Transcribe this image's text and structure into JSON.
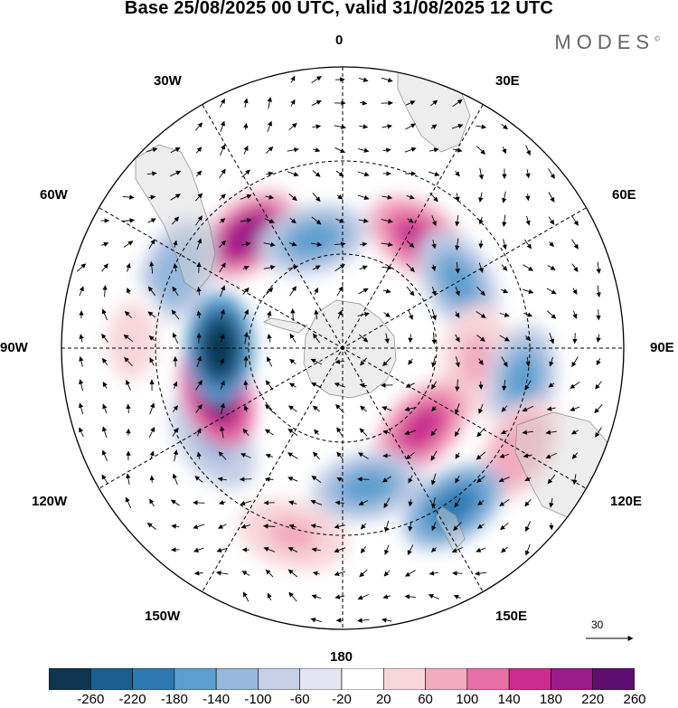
{
  "title": "Base 25/08/2025 00 UTC, valid 31/08/2025 12 UTC",
  "brand": "MODES",
  "brand_mark": "©",
  "longitude_labels": {
    "top": "0",
    "top_right": "30E",
    "right_upper": "60E",
    "right": "90E",
    "right_lower": "120E",
    "bottom_right": "150E",
    "bottom": "180",
    "bottom_left": "150W",
    "left_lower": "120W",
    "left": "90W",
    "left_upper": "60W",
    "top_left": "30W"
  },
  "reference_vector": {
    "label": "30"
  },
  "colorbar": {
    "ticks": [
      "-260",
      "-220",
      "-180",
      "-140",
      "-100",
      "-60",
      "-20",
      "20",
      "60",
      "100",
      "140",
      "180",
      "220",
      "260"
    ],
    "colors": [
      "#0f3550",
      "#1b5f8e",
      "#2f79b3",
      "#5c9fcf",
      "#95b8dc",
      "#c5cfe6",
      "#e5e4f1",
      "#ffffff",
      "#f8d6dc",
      "#f2aabf",
      "#e870a6",
      "#c92d8f",
      "#9c1a89",
      "#5c0f6e"
    ]
  },
  "map_data": {
    "projection": "south-polar-stereographic",
    "anomalies": [
      {
        "lon": -40,
        "lat": -48,
        "value": 230
      },
      {
        "lon": -15,
        "lat": -58,
        "value": -140
      },
      {
        "lon": 35,
        "lat": -52,
        "value": 190
      },
      {
        "lon": 60,
        "lat": -52,
        "value": -150
      },
      {
        "lon": 95,
        "lat": -52,
        "value": 80
      },
      {
        "lon": 100,
        "lat": -38,
        "value": -160
      },
      {
        "lon": 120,
        "lat": -32,
        "value": 110
      },
      {
        "lon": 135,
        "lat": -58,
        "value": 160
      },
      {
        "lon": 145,
        "lat": -35,
        "value": -170
      },
      {
        "lon": 170,
        "lat": -50,
        "value": -150
      },
      {
        "lon": -165,
        "lat": -35,
        "value": 80
      },
      {
        "lon": -125,
        "lat": -45,
        "value": -100
      },
      {
        "lon": -110,
        "lat": -52,
        "value": 240
      },
      {
        "lon": -90,
        "lat": -55,
        "value": -270
      },
      {
        "lon": -65,
        "lat": -38,
        "value": -120
      },
      {
        "lon": -88,
        "lat": -30,
        "value": 60
      }
    ]
  }
}
